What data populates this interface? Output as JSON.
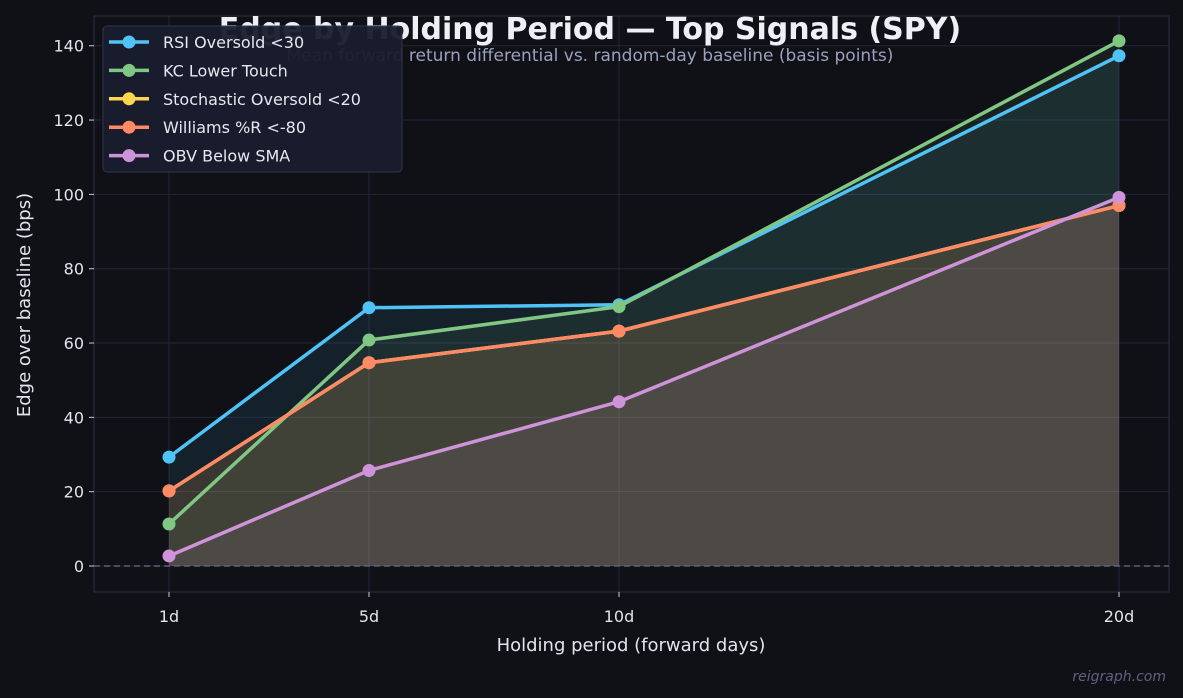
{
  "chart_data": {
    "type": "line",
    "title": "Edge by Holding Period — Top Signals (SPY)",
    "subtitle": "Mean forward return differential vs. random-day baseline (basis points)",
    "xlabel": "Holding period (forward days)",
    "ylabel": "Edge over baseline (bps)",
    "x": [
      1,
      5,
      10,
      20
    ],
    "x_tick_labels": [
      "1d",
      "5d",
      "10d",
      "20d"
    ],
    "xlim": [
      -0.5,
      21
    ],
    "ylim": [
      -7,
      148
    ],
    "y_ticks": [
      0,
      20,
      40,
      60,
      80,
      100,
      120,
      140
    ],
    "grid": true,
    "legend_position": "top-left",
    "baseline": 0,
    "series": [
      {
        "name": "RSI Oversold <30",
        "values": [
          29.3,
          69.5,
          70.3,
          137.3
        ],
        "color": "#4fc3f7"
      },
      {
        "name": "KC Lower Touch",
        "values": [
          11.3,
          60.8,
          69.8,
          141.3
        ],
        "color": "#81c784"
      },
      {
        "name": "Stochastic Oversold <20",
        "values": [
          20.2,
          54.7,
          63.2,
          97.0
        ],
        "color": "#ffd54f"
      },
      {
        "name": "Williams %R <-80",
        "values": [
          20.2,
          54.7,
          63.2,
          97.0
        ],
        "color": "#ff8a65"
      },
      {
        "name": "OBV Below SMA",
        "values": [
          2.7,
          25.7,
          44.2,
          99.2
        ],
        "color": "#ce93d8"
      }
    ]
  },
  "watermark": "reigraph.com"
}
